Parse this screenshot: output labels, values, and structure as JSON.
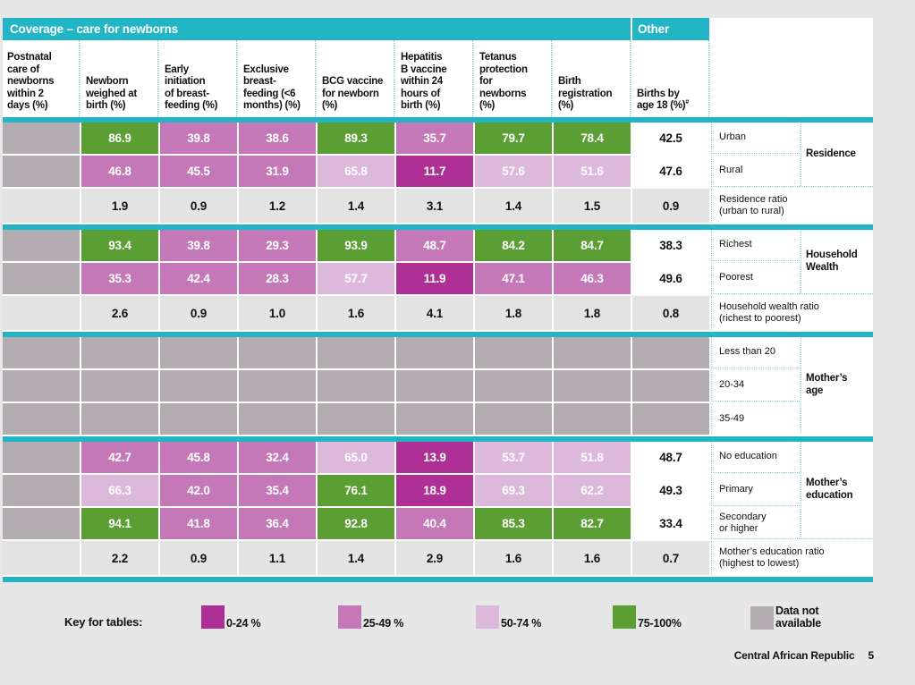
{
  "table": {
    "title": "Coverage – care for newborns",
    "other_title": "Other",
    "columns": [
      {
        "label": "Postnatal\ncare of\nnewborns\nwithin 2\ndays (%)"
      },
      {
        "label": "Newborn\nweighed at\nbirth (%)"
      },
      {
        "label": "Early\ninitiation\nof breast-\nfeeding (%)"
      },
      {
        "label": "Exclusive\nbreast-\nfeeding (<6\nmonths) (%)"
      },
      {
        "label": "BCG vaccine\nfor newborn\n(%)"
      },
      {
        "label": "Hepatitis\nB vaccine\nwithin 24\nhours of\nbirth (%)"
      },
      {
        "label": "Tetanus\nprotection\nfor\nnewborns\n(%)"
      },
      {
        "label": "Birth\nregistration\n(%)"
      },
      {
        "label": "Births by\nage 18 (%)",
        "sup": "#"
      }
    ],
    "sections": [
      {
        "group": "Residence",
        "rows": [
          {
            "type": "data",
            "label": "Urban",
            "cells": [
              {
                "c": "na"
              },
              {
                "v": "86.9",
                "c": "green"
              },
              {
                "v": "39.8",
                "c": "pink"
              },
              {
                "v": "38.6",
                "c": "pink"
              },
              {
                "v": "89.3",
                "c": "green"
              },
              {
                "v": "35.7",
                "c": "pink"
              },
              {
                "v": "79.7",
                "c": "green"
              },
              {
                "v": "78.4",
                "c": "green"
              },
              {
                "v": "42.5",
                "c": "plain"
              }
            ]
          },
          {
            "type": "data",
            "label": "Rural",
            "cells": [
              {
                "c": "na"
              },
              {
                "v": "46.8",
                "c": "pink"
              },
              {
                "v": "45.5",
                "c": "pink"
              },
              {
                "v": "31.9",
                "c": "pink"
              },
              {
                "v": "65.8",
                "c": "lightpink"
              },
              {
                "v": "11.7",
                "c": "magenta"
              },
              {
                "v": "57.6",
                "c": "lightpink"
              },
              {
                "v": "51.6",
                "c": "lightpink"
              },
              {
                "v": "47.6",
                "c": "plain"
              }
            ]
          },
          {
            "type": "ratio",
            "label": "Residence ratio\n(urban to rural)",
            "cells": [
              {
                "c": "ratio"
              },
              {
                "v": "1.9",
                "c": "ratio"
              },
              {
                "v": "0.9",
                "c": "ratio"
              },
              {
                "v": "1.2",
                "c": "ratio"
              },
              {
                "v": "1.4",
                "c": "ratio"
              },
              {
                "v": "3.1",
                "c": "ratio"
              },
              {
                "v": "1.4",
                "c": "ratio"
              },
              {
                "v": "1.5",
                "c": "ratio"
              },
              {
                "v": "0.9",
                "c": "ratio"
              }
            ]
          }
        ]
      },
      {
        "group": "Household\nWealth",
        "rows": [
          {
            "type": "data",
            "label": "Richest",
            "cells": [
              {
                "c": "na"
              },
              {
                "v": "93.4",
                "c": "green"
              },
              {
                "v": "39.8",
                "c": "pink"
              },
              {
                "v": "29.3",
                "c": "pink"
              },
              {
                "v": "93.9",
                "c": "green"
              },
              {
                "v": "48.7",
                "c": "pink"
              },
              {
                "v": "84.2",
                "c": "green"
              },
              {
                "v": "84.7",
                "c": "green"
              },
              {
                "v": "38.3",
                "c": "plain"
              }
            ]
          },
          {
            "type": "data",
            "label": "Poorest",
            "cells": [
              {
                "c": "na"
              },
              {
                "v": "35.3",
                "c": "pink"
              },
              {
                "v": "42.4",
                "c": "pink"
              },
              {
                "v": "28.3",
                "c": "pink"
              },
              {
                "v": "57.7",
                "c": "lightpink"
              },
              {
                "v": "11.9",
                "c": "magenta"
              },
              {
                "v": "47.1",
                "c": "pink"
              },
              {
                "v": "46.3",
                "c": "pink"
              },
              {
                "v": "49.6",
                "c": "plain"
              }
            ]
          },
          {
            "type": "ratio",
            "label": "Household wealth ratio\n(richest to poorest)",
            "cells": [
              {
                "c": "ratio"
              },
              {
                "v": "2.6",
                "c": "ratio"
              },
              {
                "v": "0.9",
                "c": "ratio"
              },
              {
                "v": "1.0",
                "c": "ratio"
              },
              {
                "v": "1.6",
                "c": "ratio"
              },
              {
                "v": "4.1",
                "c": "ratio"
              },
              {
                "v": "1.8",
                "c": "ratio"
              },
              {
                "v": "1.8",
                "c": "ratio"
              },
              {
                "v": "0.8",
                "c": "ratio"
              }
            ]
          }
        ]
      },
      {
        "group": "Mother’s\nage",
        "rows": [
          {
            "type": "data",
            "label": "Less than 20",
            "cells": [
              {
                "c": "na"
              },
              {
                "c": "na"
              },
              {
                "c": "na"
              },
              {
                "c": "na"
              },
              {
                "c": "na"
              },
              {
                "c": "na"
              },
              {
                "c": "na"
              },
              {
                "c": "na"
              },
              {
                "c": "na"
              }
            ]
          },
          {
            "type": "data",
            "label": "20-34",
            "cells": [
              {
                "c": "na"
              },
              {
                "c": "na"
              },
              {
                "c": "na"
              },
              {
                "c": "na"
              },
              {
                "c": "na"
              },
              {
                "c": "na"
              },
              {
                "c": "na"
              },
              {
                "c": "na"
              },
              {
                "c": "na"
              }
            ]
          },
          {
            "type": "data",
            "label": "35-49",
            "cells": [
              {
                "c": "na"
              },
              {
                "c": "na"
              },
              {
                "c": "na"
              },
              {
                "c": "na"
              },
              {
                "c": "na"
              },
              {
                "c": "na"
              },
              {
                "c": "na"
              },
              {
                "c": "na"
              },
              {
                "c": "na"
              }
            ]
          }
        ]
      },
      {
        "group": "Mother’s\neducation",
        "rows": [
          {
            "type": "data",
            "label": "No education",
            "cells": [
              {
                "c": "na"
              },
              {
                "v": "42.7",
                "c": "pink"
              },
              {
                "v": "45.8",
                "c": "pink"
              },
              {
                "v": "32.4",
                "c": "pink"
              },
              {
                "v": "65.0",
                "c": "lightpink"
              },
              {
                "v": "13.9",
                "c": "magenta"
              },
              {
                "v": "53.7",
                "c": "lightpink"
              },
              {
                "v": "51.8",
                "c": "lightpink"
              },
              {
                "v": "48.7",
                "c": "plain"
              }
            ]
          },
          {
            "type": "data",
            "label": "Primary",
            "cells": [
              {
                "c": "na"
              },
              {
                "v": "66.3",
                "c": "lightpink"
              },
              {
                "v": "42.0",
                "c": "pink"
              },
              {
                "v": "35.4",
                "c": "pink"
              },
              {
                "v": "76.1",
                "c": "green"
              },
              {
                "v": "18.9",
                "c": "magenta"
              },
              {
                "v": "69.3",
                "c": "lightpink"
              },
              {
                "v": "62.2",
                "c": "lightpink"
              },
              {
                "v": "49.3",
                "c": "plain"
              }
            ]
          },
          {
            "type": "data",
            "label": "Secondary\nor higher",
            "cells": [
              {
                "c": "na"
              },
              {
                "v": "94.1",
                "c": "green"
              },
              {
                "v": "41.8",
                "c": "pink"
              },
              {
                "v": "36.4",
                "c": "pink"
              },
              {
                "v": "92.8",
                "c": "green"
              },
              {
                "v": "40.4",
                "c": "pink"
              },
              {
                "v": "85.3",
                "c": "green"
              },
              {
                "v": "82.7",
                "c": "green"
              },
              {
                "v": "33.4",
                "c": "plain"
              }
            ]
          },
          {
            "type": "ratio",
            "label": "Mother’s education ratio\n(highest to lowest)",
            "cells": [
              {
                "c": "ratio"
              },
              {
                "v": "2.2",
                "c": "ratio"
              },
              {
                "v": "0.9",
                "c": "ratio"
              },
              {
                "v": "1.1",
                "c": "ratio"
              },
              {
                "v": "1.4",
                "c": "ratio"
              },
              {
                "v": "2.9",
                "c": "ratio"
              },
              {
                "v": "1.6",
                "c": "ratio"
              },
              {
                "v": "1.6",
                "c": "ratio"
              },
              {
                "v": "0.7",
                "c": "ratio"
              }
            ]
          }
        ]
      }
    ]
  },
  "key": {
    "title": "Key for tables:",
    "items": [
      {
        "label": "0-24 %",
        "color": "#ae2f96"
      },
      {
        "label": "25-49 %",
        "color": "#c478b7"
      },
      {
        "label": "50-74 %",
        "color": "#dcb9db"
      },
      {
        "label": "75-100%",
        "color": "#5b9e33"
      },
      {
        "label": "Data not\navailable",
        "color": "#b3adb1"
      }
    ]
  },
  "footer": {
    "country": "Central African Republic",
    "page": "5"
  },
  "colors": {
    "teal": "#22b5c5",
    "green": "#5b9e33",
    "pink": "#c478b7",
    "lightpink": "#dcb9db",
    "magenta": "#ae2f96",
    "na": "#b3adb1",
    "ratio": "#e4e3e4",
    "plain": "#ffffff",
    "page_background": "#e8e7e7"
  }
}
